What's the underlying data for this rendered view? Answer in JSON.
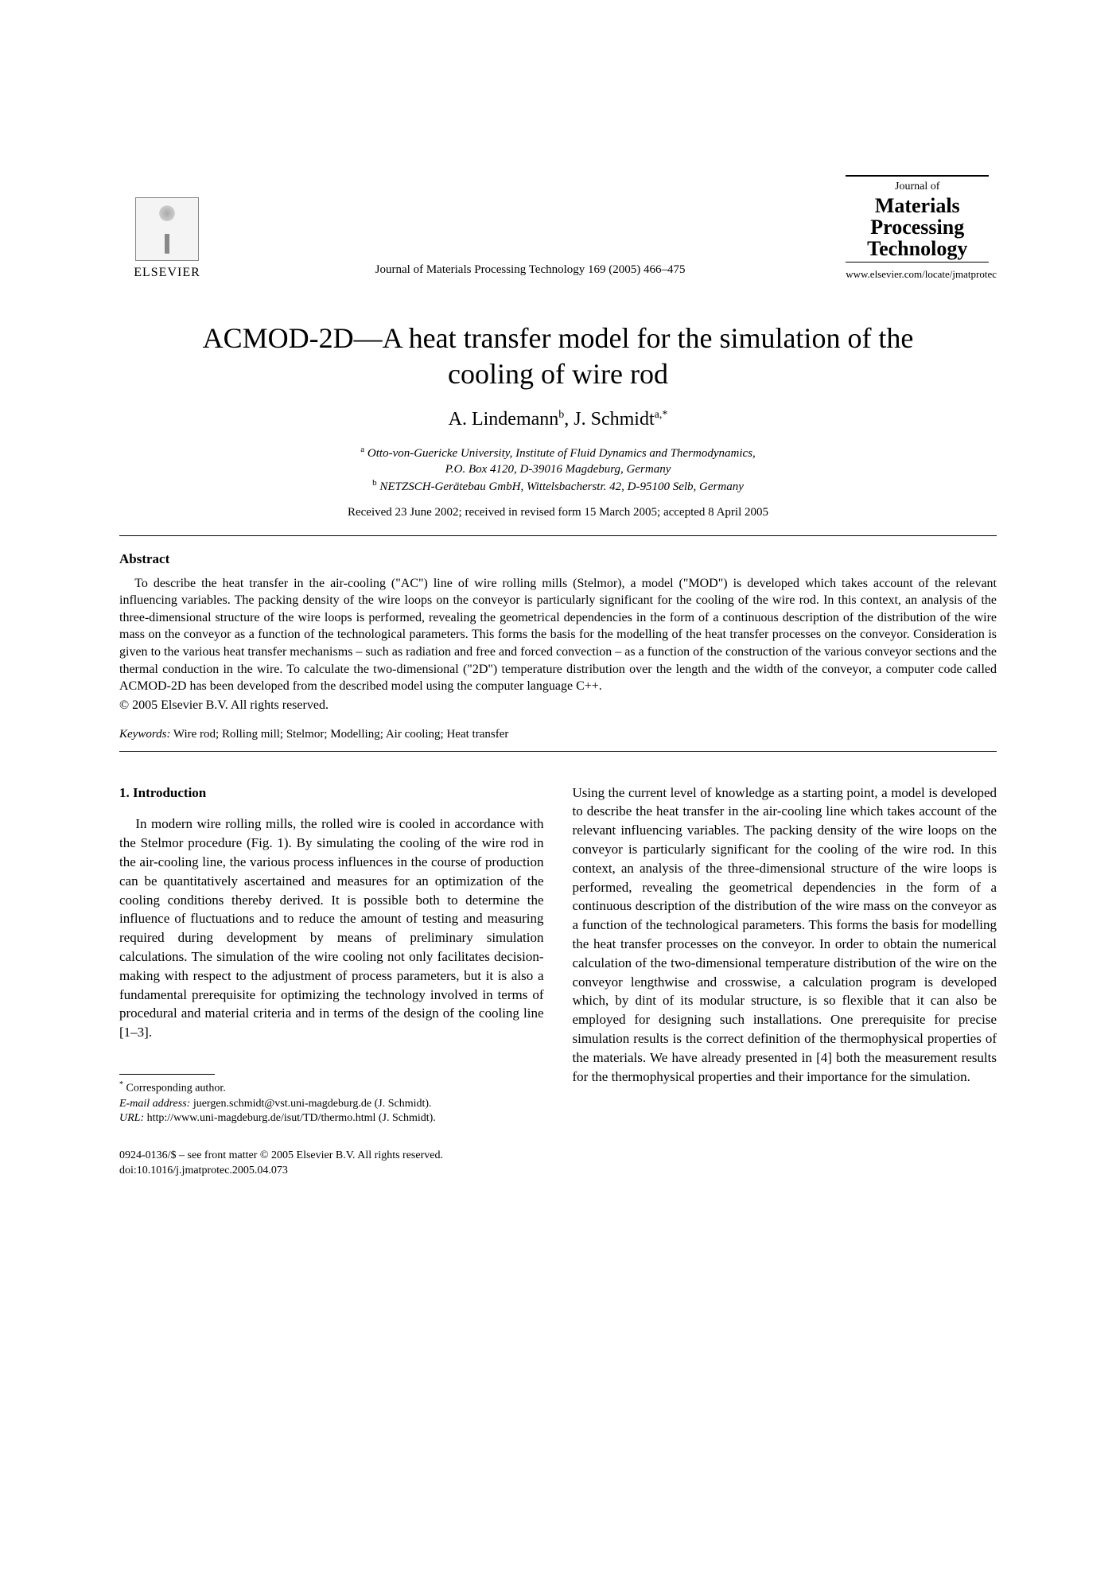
{
  "publisher": {
    "name": "ELSEVIER"
  },
  "journal": {
    "reference_line": "Journal of Materials Processing Technology 169 (2005) 466–475",
    "box_line1": "Journal of",
    "box_line2a": "Materials",
    "box_line2b": "Processing",
    "box_line2c": "Technology",
    "url": "www.elsevier.com/locate/jmatprotec"
  },
  "title": "ACMOD-2D—A heat transfer model for the simulation of the cooling of wire rod",
  "authors_html": "A. Lindemann",
  "author1": "A. Lindemann",
  "author1_sup": "b",
  "author2": "J. Schmidt",
  "author2_sup": "a,",
  "author2_star": "*",
  "affiliations": {
    "a_sup": "a",
    "a_text": "Otto-von-Guericke University, Institute of Fluid Dynamics and Thermodynamics,",
    "a_text2": "P.O. Box 4120, D-39016 Magdeburg, Germany",
    "b_sup": "b",
    "b_text": "NETZSCH-Gerätebau GmbH, Wittelsbacherstr. 42, D-95100 Selb, Germany"
  },
  "dates": "Received 23 June 2002; received in revised form 15 March 2005; accepted 8 April 2005",
  "abstract": {
    "label": "Abstract",
    "body": "To describe the heat transfer in the air-cooling (\"AC\") line of wire rolling mills (Stelmor), a model (\"MOD\") is developed which takes account of the relevant influencing variables. The packing density of the wire loops on the conveyor is particularly significant for the cooling of the wire rod. In this context, an analysis of the three-dimensional structure of the wire loops is performed, revealing the geometrical dependencies in the form of a continuous description of the distribution of the wire mass on the conveyor as a function of the technological parameters. This forms the basis for the modelling of the heat transfer processes on the conveyor. Consideration is given to the various heat transfer mechanisms – such as radiation and free and forced convection – as a function of the construction of the various conveyor sections and the thermal conduction in the wire. To calculate the two-dimensional (\"2D\") temperature distribution over the length and the width of the conveyor, a computer code called ACMOD-2D has been developed from the described model using the computer language C++.",
    "copyright": "© 2005 Elsevier B.V. All rights reserved."
  },
  "keywords": {
    "label": "Keywords:",
    "text": " Wire rod; Rolling mill; Stelmor; Modelling; Air cooling; Heat transfer"
  },
  "section1": {
    "heading": "1. Introduction",
    "col1": "In modern wire rolling mills, the rolled wire is cooled in accordance with the Stelmor procedure (Fig. 1). By simulating the cooling of the wire rod in the air-cooling line, the various process influences in the course of production can be quantitatively ascertained and measures for an optimization of the cooling conditions thereby derived. It is possible both to determine the influence of fluctuations and to reduce the amount of testing and measuring required during development by means of preliminary simulation calculations. The simulation of the wire cooling not only facilitates decision-making with respect to the adjustment of process parameters, but it is also a fundamental prerequisite for optimizing the technology involved in terms of procedural and material criteria and in terms of the design of the cooling line [1–3].",
    "col2": "Using the current level of knowledge as a starting point, a model is developed to describe the heat transfer in the air-cooling line which takes account of the relevant influencing variables. The packing density of the wire loops on the conveyor is particularly significant for the cooling of the wire rod. In this context, an analysis of the three-dimensional structure of the wire loops is performed, revealing the geometrical dependencies in the form of a continuous description of the distribution of the wire mass on the conveyor as a function of the technological parameters. This forms the basis for modelling the heat transfer processes on the conveyor. In order to obtain the numerical calculation of the two-dimensional temperature distribution of the wire on the conveyor lengthwise and crosswise, a calculation program is developed which, by dint of its modular structure, is so flexible that it can also be employed for designing such installations. One prerequisite for precise simulation results is the correct definition of the thermophysical properties of the materials. We have already presented in [4] both the measurement results for the thermophysical properties and their importance for the simulation."
  },
  "footnotes": {
    "star": "*",
    "corresponding": " Corresponding author.",
    "email_label": "E-mail address:",
    "email": " juergen.schmidt@vst.uni-magdeburg.de (J. Schmidt).",
    "url_label": "URL:",
    "url": " http://www.uni-magdeburg.de/isut/TD/thermo.html (J. Schmidt)."
  },
  "doi": {
    "line1": "0924-0136/$ – see front matter © 2005 Elsevier B.V. All rights reserved.",
    "line2": "doi:10.1016/j.jmatprotec.2005.04.073"
  },
  "colors": {
    "text": "#000000",
    "link": "#0645ad",
    "background": "#ffffff"
  }
}
